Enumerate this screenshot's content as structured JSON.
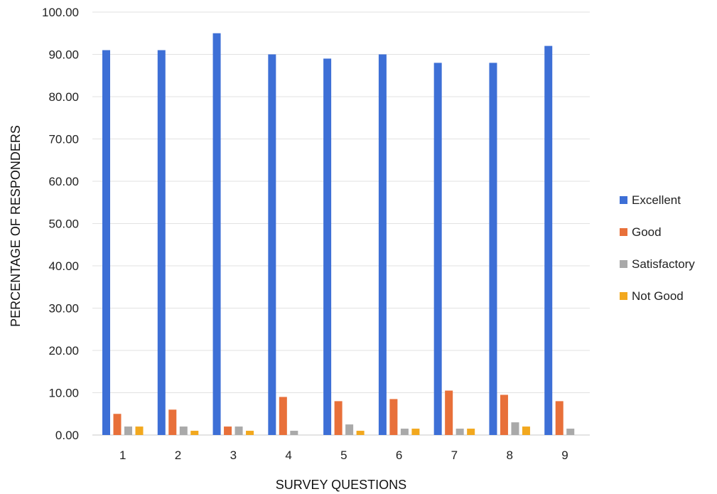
{
  "chart_data": {
    "type": "bar",
    "title": "",
    "xlabel": "SURVEY QUESTIONS",
    "ylabel": "PERCENTAGE OF RESPONDERS",
    "ylim": [
      0,
      100
    ],
    "yticks": [
      "0.00",
      "10.00",
      "20.00",
      "30.00",
      "40.00",
      "50.00",
      "60.00",
      "70.00",
      "80.00",
      "90.00",
      "100.00"
    ],
    "categories": [
      "1",
      "2",
      "3",
      "4",
      "5",
      "6",
      "7",
      "8",
      "9"
    ],
    "grid": true,
    "legend_position": "right",
    "series": [
      {
        "name": "Excellent",
        "color": "#3d6fd6",
        "values": [
          91.0,
          91.0,
          95.0,
          90.0,
          89.0,
          90.0,
          88.0,
          88.0,
          92.0
        ]
      },
      {
        "name": "Good",
        "color": "#e8703a",
        "values": [
          5.0,
          6.0,
          2.0,
          9.0,
          8.0,
          8.5,
          10.5,
          9.5,
          8.0
        ]
      },
      {
        "name": "Satisfactory",
        "color": "#a9a9a9",
        "values": [
          2.0,
          2.0,
          2.0,
          1.0,
          2.5,
          1.5,
          1.5,
          3.0,
          1.5
        ]
      },
      {
        "name": "Not Good",
        "color": "#f2a81e",
        "values": [
          2.0,
          1.0,
          1.0,
          0.0,
          1.0,
          1.5,
          1.5,
          2.0,
          0.0
        ]
      }
    ]
  }
}
